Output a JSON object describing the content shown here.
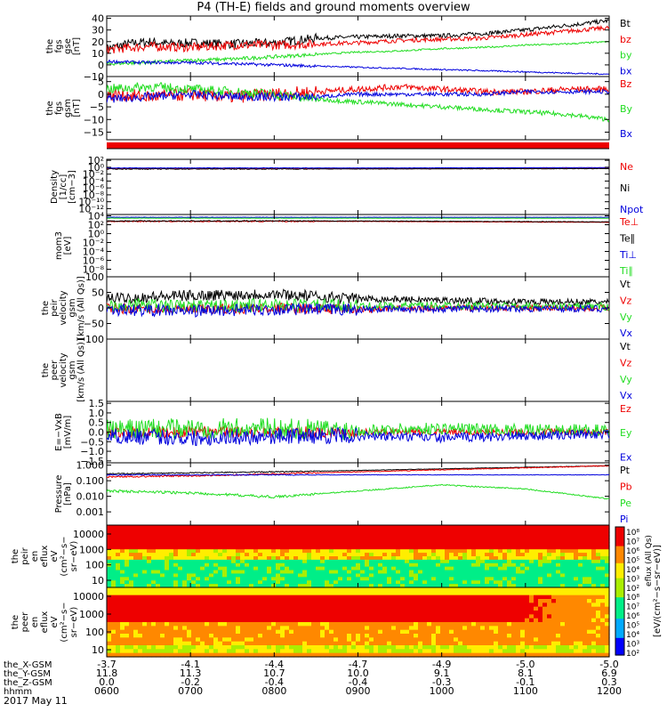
{
  "title": "P4 (TH-E) fields and ground moments overview",
  "date_label": "2017 May 11",
  "colors": {
    "black": "#000000",
    "red": "#ee0000",
    "green": "#22dd22",
    "blue": "#0000dd"
  },
  "chart_data": {
    "type": "line",
    "x_ticks": [
      "0600",
      "0700",
      "0800",
      "0900",
      "1000",
      "1100",
      "1200"
    ],
    "ephemeris": [
      {
        "name": "the_X-GSM",
        "values": [
          "-3.7",
          "-4.1",
          "-4.4",
          "-4.7",
          "-4.9",
          "-5.0",
          "-5.0"
        ]
      },
      {
        "name": "the_Y-GSM",
        "values": [
          "11.8",
          "11.3",
          "10.7",
          "10.0",
          "9.1",
          "8.1",
          "6.9"
        ]
      },
      {
        "name": "the_Z-GSM",
        "values": [
          "0.0",
          "-0.2",
          "-0.4",
          "-0.4",
          "-0.3",
          "-0.1",
          "0.3"
        ]
      },
      {
        "name": "hhmm",
        "values": [
          "0600",
          "0700",
          "0800",
          "0900",
          "1000",
          "1100",
          "1200"
        ]
      }
    ],
    "panels": [
      {
        "ylabel": [
          "the",
          "fgs",
          "gse",
          "[nT]"
        ],
        "y_ticks": [
          "40",
          "30",
          "20",
          "10",
          "0",
          "−10"
        ],
        "ylim": [
          -10,
          42
        ],
        "legend": [
          {
            "label": "Bt",
            "color": "black"
          },
          {
            "label": "bz",
            "color": "red"
          },
          {
            "label": "by",
            "color": "green"
          },
          {
            "label": "bx",
            "color": "blue"
          }
        ],
        "series": [
          {
            "name": "Bt",
            "color": "black",
            "x": [
              0,
              0.25,
              0.5,
              0.75,
              1,
              1.5,
              2,
              2.5,
              3,
              3.5,
              4,
              4.5,
              5,
              5.5,
              6
            ],
            "y": [
              14,
              18,
              20,
              18,
              19,
              18,
              19,
              23,
              24,
              25,
              25,
              27,
              30,
              34,
              38
            ]
          },
          {
            "name": "bz",
            "color": "red",
            "x": [
              0,
              0.5,
              1,
              1.5,
              2,
              2.5,
              3,
              3.5,
              4,
              4.5,
              5,
              5.5,
              6
            ],
            "y": [
              13,
              16,
              15,
              17,
              17,
              18,
              19,
              21,
              22,
              23,
              26,
              29,
              32
            ]
          },
          {
            "name": "by",
            "color": "green",
            "x": [
              0,
              0.5,
              1,
              1.5,
              2,
              2.5,
              3,
              3.5,
              4,
              4.5,
              5,
              5.5,
              6
            ],
            "y": [
              1,
              2,
              4,
              5,
              7,
              9,
              11,
              12,
              14,
              15,
              17,
              18,
              20
            ]
          },
          {
            "name": "bx",
            "color": "blue",
            "x": [
              0,
              0.5,
              1,
              1.5,
              2,
              2.5,
              3,
              3.5,
              4,
              4.5,
              5,
              5.5,
              6
            ],
            "y": [
              3,
              2,
              2,
              1,
              0,
              -1,
              -2,
              -3,
              -4,
              -5,
              -6,
              -7,
              -8
            ]
          }
        ]
      },
      {
        "ylabel": [
          "the",
          "fgs",
          "gsm",
          "[nT]"
        ],
        "y_ticks": [
          "5",
          "0",
          "−5",
          "−10",
          "−15"
        ],
        "ylim": [
          -18,
          7
        ],
        "legend": [
          {
            "label": "Bz",
            "color": "red"
          },
          {
            "label": "By",
            "color": "green"
          },
          {
            "label": "Bx",
            "color": "blue"
          }
        ],
        "series": [
          {
            "name": "Bz",
            "color": "red",
            "x": [
              0,
              0.5,
              1,
              1.5,
              2,
              2.5,
              3,
              3.5,
              4,
              4.5,
              5,
              5.5,
              6
            ],
            "y": [
              0,
              -1,
              0,
              -1,
              0,
              1,
              2,
              3,
              2,
              1,
              1,
              2,
              2
            ]
          },
          {
            "name": "By",
            "color": "green",
            "x": [
              0,
              0.5,
              1,
              1.5,
              2,
              2.5,
              3,
              3.5,
              4,
              4.5,
              5,
              5.5,
              6
            ],
            "y": [
              2,
              3,
              2,
              1,
              0,
              -2,
              -3,
              -4,
              -5,
              -6,
              -7,
              -8,
              -10
            ]
          },
          {
            "name": "Bx",
            "color": "blue",
            "x": [
              0,
              0.5,
              1,
              1.5,
              2,
              2.5,
              3,
              3.5,
              4,
              4.5,
              5,
              5.5,
              6
            ],
            "y": [
              -2,
              -1,
              0,
              -1,
              -1,
              -1,
              0,
              0,
              0,
              0,
              1,
              1,
              1
            ]
          }
        ]
      },
      {
        "ylabel": [
          "Density",
          "[1/cc]",
          "[cm−3]"
        ],
        "y_ticks": [
          "10²",
          "10⁰",
          "10⁻²",
          "10⁻⁴",
          "10⁻⁶",
          "10⁻⁸",
          "10⁻¹⁰",
          "10⁻¹²"
        ],
        "ylim": [
          -13,
          3
        ],
        "log": true,
        "legend": [
          {
            "label": "Ne",
            "color": "red"
          },
          {
            "label": "Ni",
            "color": "black"
          },
          {
            "label": "Npot",
            "color": "blue"
          }
        ],
        "series": [
          {
            "name": "Ne",
            "color": "red",
            "x": [
              0,
              3,
              6
            ],
            "y": [
              0.3,
              0.3,
              0.4
            ]
          },
          {
            "name": "Ni",
            "color": "black",
            "x": [
              0,
              3,
              6
            ],
            "y": [
              0.2,
              0.2,
              0.3
            ]
          },
          {
            "name": "Npot",
            "color": "blue",
            "x": [
              0,
              3,
              6
            ],
            "y": [
              0.5,
              0.5,
              0.6
            ]
          }
        ]
      },
      {
        "ylabel": [
          "mom3",
          "[eV]"
        ],
        "y_ticks": [
          "10⁴",
          "10²",
          "10⁰",
          "10⁻²",
          "10⁻⁴",
          "10⁻⁶",
          "10⁻⁸"
        ],
        "ylim": [
          -9,
          4.5
        ],
        "log": true,
        "legend": [
          {
            "label": "Te⊥",
            "color": "red"
          },
          {
            "label": "Te∥",
            "color": "black"
          },
          {
            "label": "Ti⊥",
            "color": "blue"
          },
          {
            "label": "Ti∥",
            "color": "green"
          }
        ],
        "series": [
          {
            "name": "Ti⊥",
            "color": "blue",
            "x": [
              0,
              3,
              6
            ],
            "y": [
              3.9,
              3.9,
              3.9
            ]
          },
          {
            "name": "Ti∥",
            "color": "green",
            "x": [
              0,
              3,
              6
            ],
            "y": [
              3.7,
              3.7,
              3.7
            ]
          },
          {
            "name": "Te⊥",
            "color": "red",
            "x": [
              0,
              3,
              6
            ],
            "y": [
              3.0,
              3.0,
              2.8
            ]
          },
          {
            "name": "Te∥",
            "color": "black",
            "x": [
              0,
              3,
              6
            ],
            "y": [
              3.1,
              3.1,
              2.9
            ]
          }
        ]
      },
      {
        "ylabel": [
          "the",
          "peir",
          "velocity",
          "gsm",
          "[km/s (All Qs)]"
        ],
        "y_ticks": [
          "100",
          "50",
          "0",
          "−50",
          "−100"
        ],
        "ylim": [
          -100,
          100
        ],
        "legend": [
          {
            "label": "Vt",
            "color": "black"
          },
          {
            "label": "Vz",
            "color": "red"
          },
          {
            "label": "Vy",
            "color": "green"
          },
          {
            "label": "Vx",
            "color": "blue"
          }
        ],
        "series": [
          {
            "name": "Vt",
            "color": "black",
            "x": [
              0,
              1,
              2,
              3,
              4,
              5,
              6
            ],
            "y": [
              30,
              40,
              45,
              30,
              25,
              20,
              18
            ]
          },
          {
            "name": "Vz",
            "color": "red",
            "x": [
              0,
              1,
              2,
              3,
              4,
              5,
              6
            ],
            "y": [
              0,
              -5,
              0,
              -5,
              0,
              0,
              0
            ]
          },
          {
            "name": "Vy",
            "color": "green",
            "x": [
              0,
              1,
              2,
              3,
              4,
              5,
              6
            ],
            "y": [
              10,
              5,
              10,
              5,
              8,
              5,
              5
            ]
          },
          {
            "name": "Vx",
            "color": "blue",
            "x": [
              0,
              1,
              2,
              3,
              4,
              5,
              6
            ],
            "y": [
              -5,
              -10,
              -5,
              -5,
              -3,
              -2,
              -2
            ]
          }
        ]
      },
      {
        "ylabel": [
          "the",
          "peer",
          "velocity",
          "gsm",
          "[km/s (All Qs)]"
        ],
        "y_ticks": [],
        "ylim": [
          -100,
          100
        ],
        "legend": [
          {
            "label": "Vt",
            "color": "black"
          },
          {
            "label": "Vz",
            "color": "red"
          },
          {
            "label": "Vy",
            "color": "green"
          },
          {
            "label": "Vx",
            "color": "blue"
          }
        ],
        "series": []
      },
      {
        "ylabel": [
          "E=−VxB",
          "[mV/m]"
        ],
        "y_ticks": [
          "1.5",
          "1.0",
          "0.5",
          "0.0",
          "−0.5",
          "−1.0",
          "−1.5"
        ],
        "ylim": [
          -1.6,
          1.6
        ],
        "legend": [
          {
            "label": "Ez",
            "color": "red"
          },
          {
            "label": "Ey",
            "color": "green"
          },
          {
            "label": "Ex",
            "color": "blue"
          }
        ],
        "series": [
          {
            "name": "Ez",
            "color": "red",
            "x": [
              0,
              1,
              2,
              3,
              4,
              5,
              6
            ],
            "y": [
              0,
              0,
              0,
              0,
              0,
              0,
              0
            ]
          },
          {
            "name": "Ey",
            "color": "green",
            "x": [
              0,
              1,
              2,
              3,
              4,
              5,
              6
            ],
            "y": [
              0.1,
              0.2,
              0.2,
              0.1,
              0.2,
              0.1,
              0.1
            ]
          },
          {
            "name": "Ex",
            "color": "blue",
            "x": [
              0,
              1,
              2,
              3,
              4,
              5,
              6
            ],
            "y": [
              -0.2,
              -0.3,
              -0.2,
              -0.2,
              -0.3,
              -0.2,
              -0.1
            ]
          }
        ]
      },
      {
        "ylabel": [
          "Pressure",
          "[nPa]"
        ],
        "y_ticks": [
          "1.000",
          "0.100",
          "0.010",
          "0.001"
        ],
        "ylim": [
          -3,
          0.1
        ],
        "log": true,
        "legend": [
          {
            "label": "Pt",
            "color": "black"
          },
          {
            "label": "Pb",
            "color": "red"
          },
          {
            "label": "Pe",
            "color": "green"
          },
          {
            "label": "Pi",
            "color": "blue"
          }
        ],
        "series": [
          {
            "name": "Pt",
            "color": "black",
            "x": [
              0,
              1,
              2,
              3,
              4,
              5,
              6
            ],
            "y": [
              -0.45,
              -0.4,
              -0.35,
              -0.28,
              -0.2,
              -0.12,
              -0.05
            ]
          },
          {
            "name": "Pb",
            "color": "red",
            "x": [
              0,
              1,
              2,
              3,
              4,
              5,
              6
            ],
            "y": [
              -0.6,
              -0.55,
              -0.45,
              -0.35,
              -0.25,
              -0.15,
              -0.05
            ]
          },
          {
            "name": "Pi",
            "color": "blue",
            "x": [
              0,
              1,
              2,
              3,
              4,
              5,
              6
            ],
            "y": [
              -0.5,
              -0.5,
              -0.5,
              -0.5,
              -0.5,
              -0.5,
              -0.5
            ]
          },
          {
            "name": "Pe",
            "color": "green",
            "x": [
              0,
              1,
              2,
              3,
              4,
              5,
              6
            ],
            "y": [
              -1.3,
              -1.4,
              -1.6,
              -1.3,
              -1.0,
              -1.2,
              -1.7
            ]
          }
        ]
      }
    ],
    "spectrograms": [
      {
        "ylabel": [
          "the",
          "peir",
          "en",
          "eflux",
          "eV",
          "(cm²−s−",
          "sr−eV)"
        ],
        "y_ticks": [
          "10000",
          "1000",
          "100",
          "10"
        ]
      },
      {
        "ylabel": [
          "the",
          "peer",
          "en",
          "eflux",
          "eV",
          "(cm²−s−",
          "sr−eV)"
        ],
        "y_ticks": [
          "10000",
          "1000",
          "100",
          "10"
        ]
      }
    ],
    "colorbar": {
      "ticks": [
        "10⁸",
        "10⁷",
        "10⁶",
        "10⁵",
        "10⁴",
        "10³",
        "10²",
        "10⁸",
        "10⁷",
        "10⁶",
        "10⁵",
        "10⁴",
        "10³",
        "10²"
      ],
      "label": "[eV/(cm²−s−sr−eV)]",
      "label_upper": "eflux (All Qs)"
    }
  }
}
